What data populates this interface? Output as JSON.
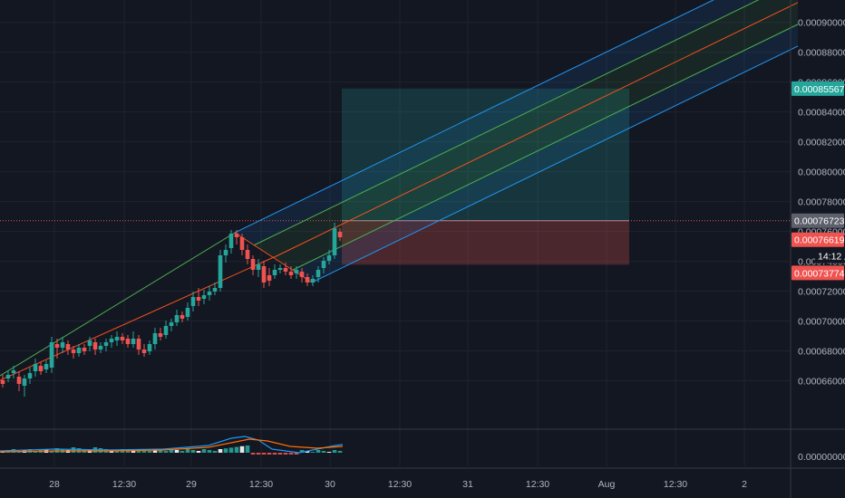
{
  "chart_data": {
    "type": "candlestick",
    "price_axis": {
      "ticks": [
        "0.00090000",
        "0.00088000",
        "0.00086000",
        "0.00084000",
        "0.00082000",
        "0.00080000",
        "0.00078000",
        "0.00076000",
        "0.00074000",
        "0.00072000",
        "0.00070000",
        "0.00068000",
        "0.00066000"
      ],
      "range": [
        0.00063,
        0.000915
      ]
    },
    "time_axis": {
      "labels": [
        "28",
        "12:30",
        "29",
        "12:30",
        "30",
        "12:30",
        "31",
        "12:30",
        "Aug",
        "12:30",
        "2"
      ]
    },
    "price_labels": {
      "target": "0.00085567",
      "last_price": "0.00076723",
      "entry": "0.00076619",
      "countdown": "14:12",
      "stop": "0.00073774"
    },
    "indicator": {
      "type": "macd",
      "zero_label": "0.00000000"
    },
    "colors": {
      "background": "#131722",
      "grid": "#1f2330",
      "up": "#26a69a",
      "down": "#ef5350",
      "channel_outer": "#2196f3",
      "channel_inner": "#4caf50",
      "channel_mid": "#f4511e",
      "fan_upper": "#4caf50",
      "fan_lower": "#f4511e",
      "target_zone": "#26a69a",
      "stop_zone": "#ef5350",
      "last_price_badge": "#5d606b",
      "macd_line": "#2196f3",
      "signal_line": "#ff6d00"
    }
  }
}
